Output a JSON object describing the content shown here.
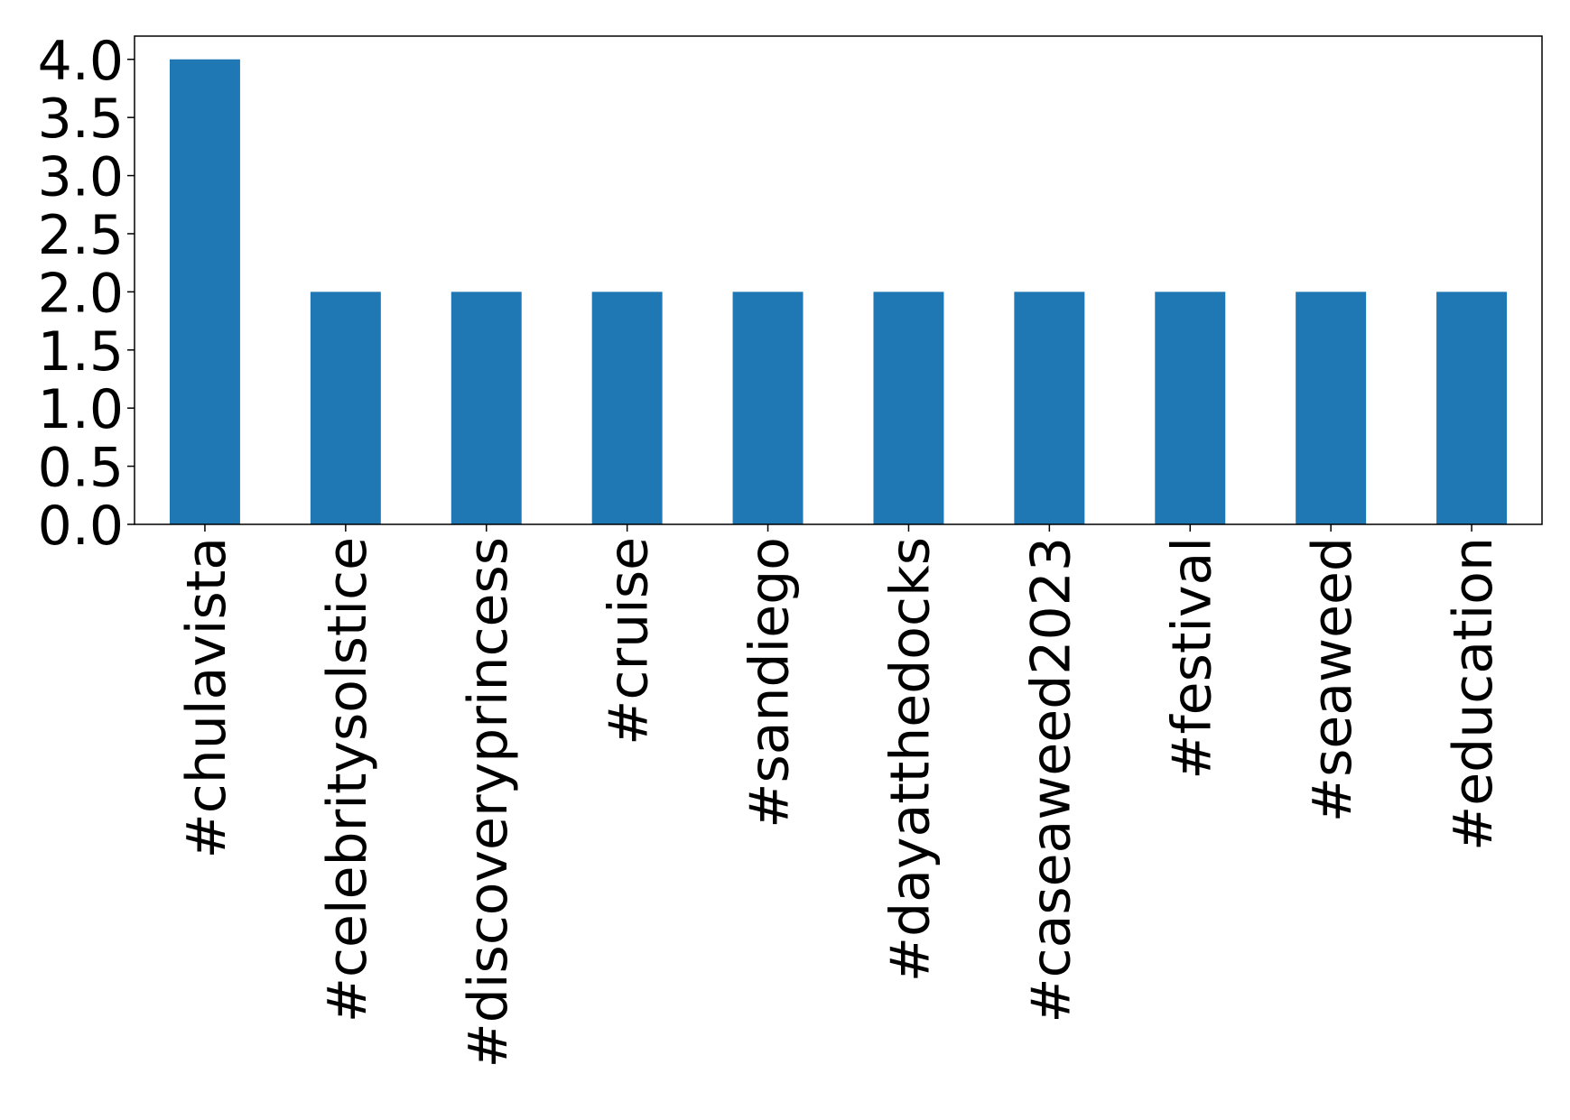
{
  "chart_data": {
    "type": "bar",
    "categories": [
      "#chulavista",
      "#celebritysolstice",
      "#discoveryprincess",
      "#cruise",
      "#sandiego",
      "#dayatthedocks",
      "#caseaweed2023",
      "#festival",
      "#seaweed",
      "#education"
    ],
    "values": [
      4,
      2,
      2,
      2,
      2,
      2,
      2,
      2,
      2,
      2
    ],
    "color": "#1f77b4",
    "ylim": [
      0,
      4.2
    ],
    "yticks": [
      {
        "value": 0,
        "label": "0.0"
      },
      {
        "value": 0.5,
        "label": "0.5"
      },
      {
        "value": 1,
        "label": "1.0"
      },
      {
        "value": 1.5,
        "label": "1.5"
      },
      {
        "value": 2,
        "label": "2.0"
      },
      {
        "value": 2.5,
        "label": "2.5"
      },
      {
        "value": 3,
        "label": "3.0"
      },
      {
        "value": 3.5,
        "label": "3.5"
      },
      {
        "value": 4,
        "label": "4.0"
      }
    ],
    "grid": false
  }
}
